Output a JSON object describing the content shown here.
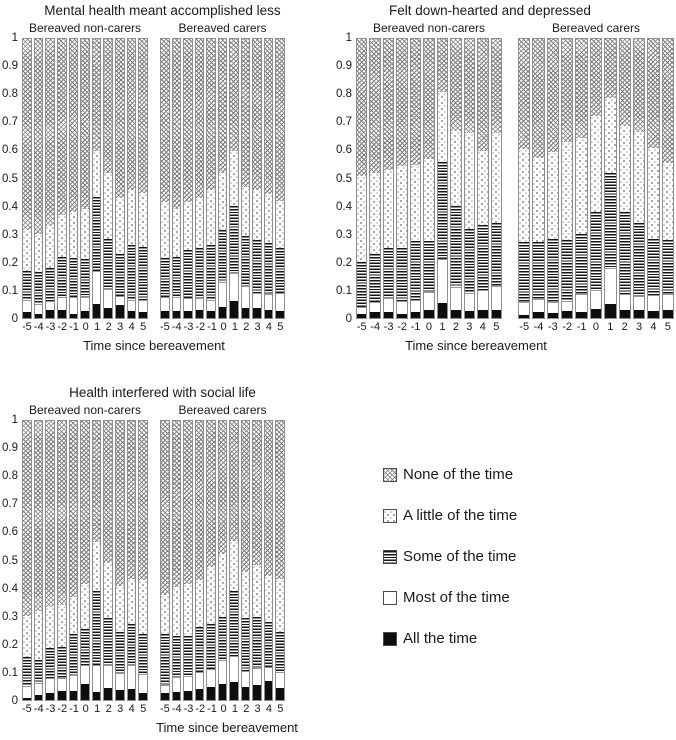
{
  "colors": {
    "hatch_ink": "#7d7d7d",
    "dot_ink": "#6f6f6f",
    "line_ink": "#161616",
    "solid_black": "#0e0e0e",
    "text": "#1a1a1a",
    "background": "#ffffff"
  },
  "legend": {
    "items": [
      {
        "label": "None of the time",
        "pattern": "crosshatch"
      },
      {
        "label": "A little of the time",
        "pattern": "dots"
      },
      {
        "label": "Some of the time",
        "pattern": "hlines"
      },
      {
        "label": "Most of the time",
        "pattern": "white"
      },
      {
        "label": "All the time",
        "pattern": "black"
      }
    ]
  },
  "chart_data": [
    {
      "type": "bar",
      "stacked": true,
      "title": "Mental health meant accomplished less",
      "xlabel": "Time since bereavement",
      "ylim": [
        0,
        1
      ],
      "y_ticks": [
        "1",
        "0.9",
        "0.8",
        "0.7",
        "0.6",
        "0.5",
        "0.4",
        "0.3",
        "0.2",
        "0.1",
        "0"
      ],
      "categories": [
        -5,
        -4,
        -3,
        -2,
        -1,
        0,
        1,
        2,
        3,
        4,
        5
      ],
      "x_tick_labels": [
        "-5",
        "-4",
        "-3",
        "-2",
        "-1",
        "0",
        "1",
        "2",
        "3",
        "4",
        "5"
      ],
      "groups": [
        {
          "label": "Bereaved non-carers",
          "series": [
            {
              "name": "All the time",
              "pattern": "black",
              "values": [
                0.02,
                0.015,
                0.028,
                0.028,
                0.013,
                0.025,
                0.05,
                0.035,
                0.045,
                0.025,
                0.022
              ]
            },
            {
              "name": "Most of the time",
              "pattern": "white",
              "values": [
                0.045,
                0.035,
                0.032,
                0.047,
                0.062,
                0.05,
                0.12,
                0.07,
                0.035,
                0.04,
                0.043
              ]
            },
            {
              "name": "Some of the time",
              "pattern": "hlines",
              "values": [
                0.105,
                0.115,
                0.12,
                0.145,
                0.14,
                0.135,
                0.265,
                0.18,
                0.15,
                0.195,
                0.19
              ]
            },
            {
              "name": "A little of the time",
              "pattern": "dots",
              "values": [
                0.145,
                0.135,
                0.15,
                0.15,
                0.165,
                0.18,
                0.165,
                0.235,
                0.2,
                0.2,
                0.195
              ]
            },
            {
              "name": "None of the time",
              "pattern": "crosshatch",
              "values": [
                0.685,
                0.7,
                0.67,
                0.63,
                0.62,
                0.61,
                0.4,
                0.48,
                0.57,
                0.54,
                0.55
              ]
            }
          ]
        },
        {
          "label": "Bereaved carers",
          "series": [
            {
              "name": "All the time",
              "pattern": "black",
              "values": [
                0.025,
                0.025,
                0.025,
                0.03,
                0.025,
                0.04,
                0.06,
                0.035,
                0.035,
                0.03,
                0.025
              ]
            },
            {
              "name": "Most of the time",
              "pattern": "white",
              "values": [
                0.05,
                0.05,
                0.045,
                0.04,
                0.04,
                0.09,
                0.1,
                0.08,
                0.055,
                0.055,
                0.065
              ]
            },
            {
              "name": "Some of the time",
              "pattern": "hlines",
              "values": [
                0.14,
                0.145,
                0.175,
                0.18,
                0.195,
                0.185,
                0.24,
                0.18,
                0.19,
                0.185,
                0.16
              ]
            },
            {
              "name": "A little of the time",
              "pattern": "dots",
              "values": [
                0.2,
                0.17,
                0.17,
                0.18,
                0.2,
                0.205,
                0.2,
                0.175,
                0.18,
                0.175,
                0.17
              ]
            },
            {
              "name": "None of the time",
              "pattern": "crosshatch",
              "values": [
                0.585,
                0.61,
                0.585,
                0.57,
                0.54,
                0.48,
                0.4,
                0.53,
                0.54,
                0.555,
                0.58
              ]
            }
          ]
        }
      ]
    },
    {
      "type": "bar",
      "stacked": true,
      "title": "Felt down-hearted and depressed",
      "xlabel": "Time since bereavement",
      "ylim": [
        0,
        1
      ],
      "y_ticks": [
        "1",
        "0.9",
        "0.8",
        "0.7",
        "0.6",
        "0.5",
        "0.4",
        "0.3",
        "0.2",
        "0.1",
        "0"
      ],
      "categories": [
        -5,
        -4,
        -3,
        -2,
        -1,
        0,
        1,
        2,
        3,
        4,
        5
      ],
      "x_tick_labels": [
        "-5",
        "-4",
        "-3",
        "-2",
        "-1",
        "0",
        "1",
        "2",
        "3",
        "4",
        "5"
      ],
      "groups": [
        {
          "label": "Bereaved non-carers",
          "series": [
            {
              "name": "All the time",
              "pattern": "black",
              "values": [
                0.015,
                0.022,
                0.02,
                0.015,
                0.02,
                0.03,
                0.055,
                0.03,
                0.025,
                0.03,
                0.03
              ]
            },
            {
              "name": "Most of the time",
              "pattern": "white",
              "values": [
                0.025,
                0.034,
                0.05,
                0.045,
                0.045,
                0.065,
                0.155,
                0.08,
                0.065,
                0.07,
                0.085
              ]
            },
            {
              "name": "Some of the time",
              "pattern": "hlines",
              "values": [
                0.16,
                0.174,
                0.18,
                0.19,
                0.21,
                0.18,
                0.35,
                0.29,
                0.23,
                0.235,
                0.225
              ]
            },
            {
              "name": "A little of the time",
              "pattern": "dots",
              "values": [
                0.31,
                0.29,
                0.28,
                0.295,
                0.275,
                0.295,
                0.25,
                0.27,
                0.345,
                0.265,
                0.325
              ]
            },
            {
              "name": "None of the time",
              "pattern": "crosshatch",
              "values": [
                0.49,
                0.48,
                0.47,
                0.455,
                0.45,
                0.43,
                0.19,
                0.33,
                0.335,
                0.4,
                0.335
              ]
            }
          ]
        },
        {
          "label": "Bereaved carers",
          "series": [
            {
              "name": "All the time",
              "pattern": "black",
              "values": [
                0.012,
                0.021,
                0.017,
                0.024,
                0.023,
                0.033,
                0.05,
                0.029,
                0.027,
                0.024,
                0.027
              ]
            },
            {
              "name": "Most of the time",
              "pattern": "white",
              "values": [
                0.044,
                0.046,
                0.042,
                0.038,
                0.062,
                0.069,
                0.128,
                0.056,
                0.052,
                0.059,
                0.06
              ]
            },
            {
              "name": "Some of the time",
              "pattern": "hlines",
              "values": [
                0.217,
                0.205,
                0.226,
                0.218,
                0.215,
                0.278,
                0.342,
                0.295,
                0.261,
                0.202,
                0.193
              ]
            },
            {
              "name": "A little of the time",
              "pattern": "dots",
              "values": [
                0.332,
                0.303,
                0.31,
                0.35,
                0.345,
                0.345,
                0.27,
                0.31,
                0.325,
                0.325,
                0.275
              ]
            },
            {
              "name": "None of the time",
              "pattern": "crosshatch",
              "values": [
                0.395,
                0.425,
                0.405,
                0.37,
                0.355,
                0.275,
                0.21,
                0.31,
                0.335,
                0.39,
                0.445
              ]
            }
          ]
        }
      ]
    },
    {
      "type": "bar",
      "stacked": true,
      "title": "Health interfered with social life",
      "xlabel": "Time since bereavement",
      "ylim": [
        0,
        1
      ],
      "y_ticks": [
        "1",
        "0.9",
        "0.8",
        "0.7",
        "0.6",
        "0.5",
        "0.4",
        "0.3",
        "0.2",
        "0.1",
        "0"
      ],
      "categories": [
        -5,
        -4,
        -3,
        -2,
        -1,
        0,
        1,
        2,
        3,
        4,
        5
      ],
      "x_tick_labels": [
        "-5",
        "-4",
        "-3",
        "-2",
        "-1",
        "0",
        "1",
        "2",
        "3",
        "4",
        "5"
      ],
      "groups": [
        {
          "label": "Bereaved non-carers",
          "series": [
            {
              "name": "All the time",
              "pattern": "black",
              "values": [
                0.007,
                0.017,
                0.024,
                0.031,
                0.031,
                0.056,
                0.029,
                0.044,
                0.036,
                0.04,
                0.024
              ]
            },
            {
              "name": "Most of the time",
              "pattern": "white",
              "values": [
                0.043,
                0.043,
                0.055,
                0.048,
                0.059,
                0.069,
                0.096,
                0.08,
                0.062,
                0.084,
                0.071
              ]
            },
            {
              "name": "Some of the time",
              "pattern": "hlines",
              "values": [
                0.105,
                0.085,
                0.106,
                0.111,
                0.145,
                0.129,
                0.265,
                0.171,
                0.146,
                0.15,
                0.143
              ]
            },
            {
              "name": "A little of the time",
              "pattern": "dots",
              "values": [
                0.145,
                0.175,
                0.15,
                0.15,
                0.135,
                0.161,
                0.175,
                0.195,
                0.166,
                0.161,
                0.192
              ]
            },
            {
              "name": "None of the time",
              "pattern": "crosshatch",
              "values": [
                0.7,
                0.68,
                0.665,
                0.66,
                0.63,
                0.585,
                0.435,
                0.51,
                0.59,
                0.565,
                0.57
              ]
            }
          ]
        },
        {
          "label": "Bereaved carers",
          "series": [
            {
              "name": "All the time",
              "pattern": "black",
              "values": [
                0.026,
                0.03,
                0.033,
                0.039,
                0.048,
                0.057,
                0.065,
                0.048,
                0.054,
                0.069,
                0.042
              ]
            },
            {
              "name": "Most of the time",
              "pattern": "white",
              "values": [
                0.029,
                0.053,
                0.054,
                0.062,
                0.062,
                0.086,
                0.092,
                0.057,
                0.059,
                0.048,
                0.059
              ]
            },
            {
              "name": "Some of the time",
              "pattern": "hlines",
              "values": [
                0.18,
                0.146,
                0.142,
                0.161,
                0.164,
                0.155,
                0.233,
                0.19,
                0.185,
                0.163,
                0.143
              ]
            },
            {
              "name": "A little of the time",
              "pattern": "dots",
              "values": [
                0.14,
                0.176,
                0.186,
                0.168,
                0.201,
                0.227,
                0.18,
                0.165,
                0.187,
                0.165,
                0.191
              ]
            },
            {
              "name": "None of the time",
              "pattern": "crosshatch",
              "values": [
                0.625,
                0.595,
                0.585,
                0.57,
                0.525,
                0.475,
                0.43,
                0.54,
                0.515,
                0.555,
                0.565
              ]
            }
          ]
        }
      ]
    }
  ]
}
